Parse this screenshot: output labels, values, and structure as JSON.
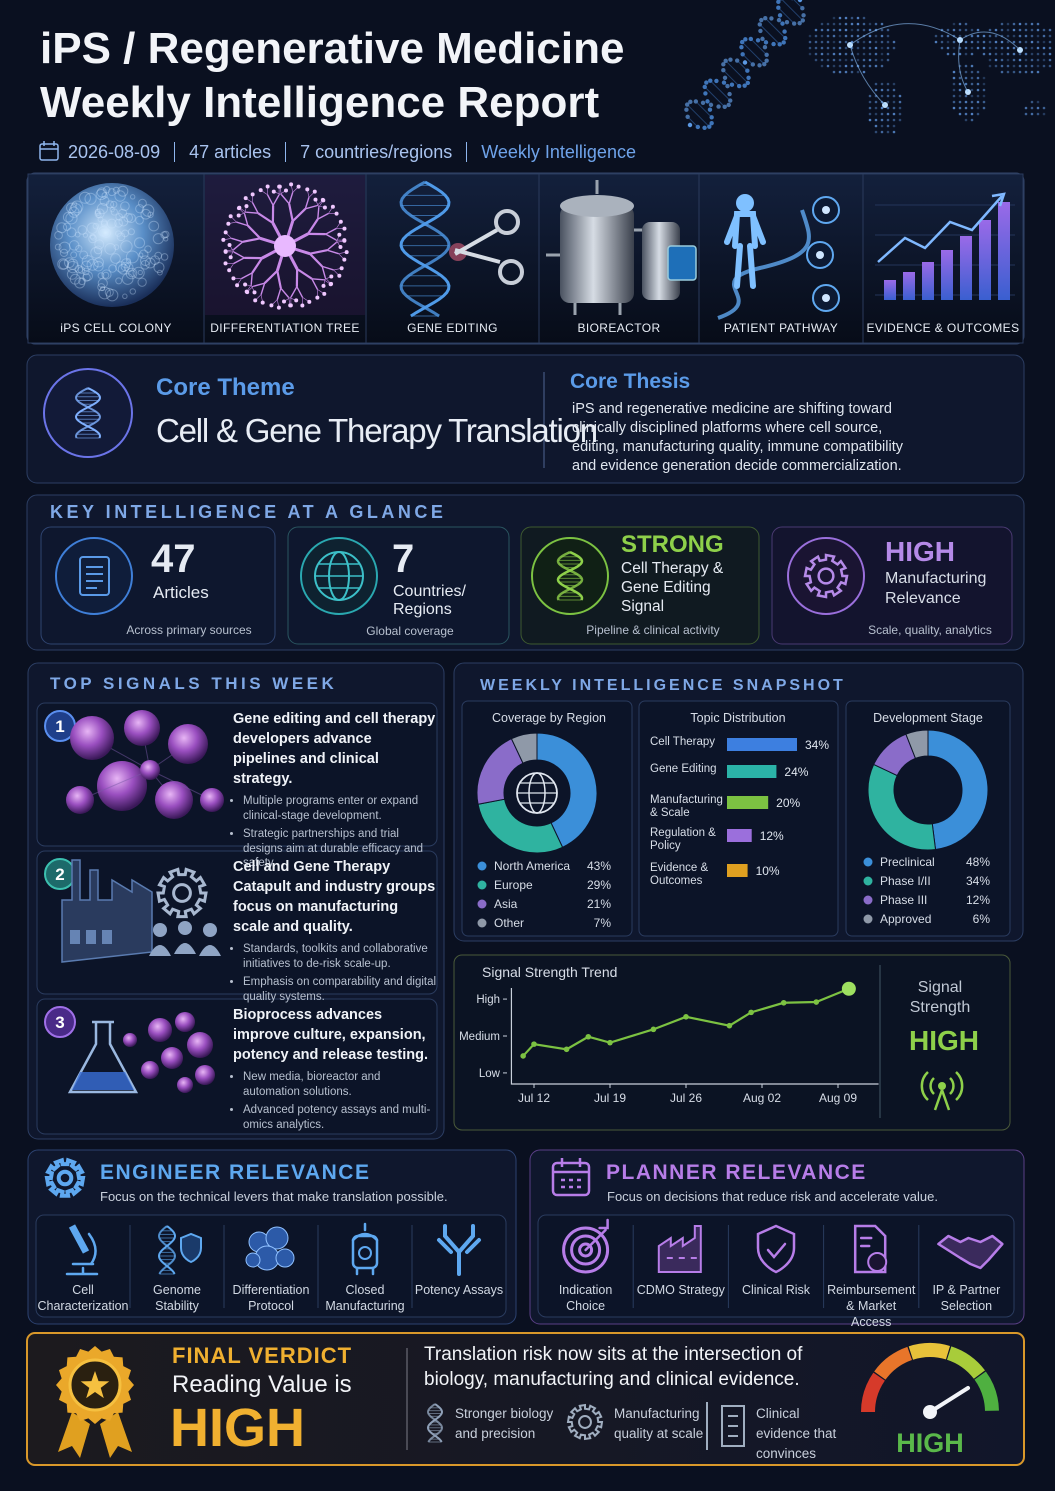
{
  "header": {
    "title": [
      "iPS / Regenerative Medicine",
      "Weekly Intelligence Report"
    ],
    "date": "2026-08-09",
    "articles": "47 articles",
    "countries": "7 countries/regions",
    "edition": "Weekly Intelligence"
  },
  "image_strip": {
    "captions": [
      "iPS CELL COLONY",
      "DIFFERENTIATION TREE",
      "GENE EDITING",
      "BIOREACTOR",
      "PATIENT PATHWAY",
      "EVIDENCE & OUTCOMES"
    ]
  },
  "core": {
    "theme_label": "Core Theme",
    "theme": "Cell & Gene Therapy Translation",
    "thesis_label": "Core Thesis",
    "thesis": "iPS and regenerative medicine are shifting toward clinically disciplined platforms where cell source, editing, manufacturing quality, immune compatibility and evidence generation decide commercialization."
  },
  "key_intelligence": {
    "title": "KEY INTELLIGENCE AT A GLANCE",
    "cards": [
      {
        "value": 47,
        "label": "Articles",
        "note": "Across primary sources"
      },
      {
        "value": 7,
        "label": "Countries/ Regions",
        "note": "Global coverage"
      },
      {
        "value": "STRONG",
        "label": "Cell Therapy & Gene Editing Signal",
        "note": "Pipeline & clinical activity"
      },
      {
        "value": "HIGH",
        "label": "Manufacturing Relevance",
        "note": "Scale, quality, analytics"
      }
    ]
  },
  "top_signals": {
    "title": "TOP SIGNALS THIS WEEK",
    "items": [
      {
        "number": 1,
        "headline": "Gene editing and cell therapy developers advance pipelines and clinical strategy.",
        "bullets": [
          "Multiple programs enter or expand clinical-stage development.",
          "Strategic partnerships and trial designs aim at durable efficacy and safety."
        ]
      },
      {
        "number": 2,
        "headline": "Cell and Gene Therapy Catapult and industry groups focus on manufacturing scale and quality.",
        "bullets": [
          "Standards, toolkits and collaborative initiatives to de-risk scale-up.",
          "Emphasis on comparability and digital quality systems."
        ]
      },
      {
        "number": 3,
        "headline": "Bioprocess advances improve culture, expansion, potency and release testing.",
        "bullets": [
          "New media, bioreactor and automation solutions.",
          "Advanced potency assays and multi-omics analytics."
        ]
      }
    ]
  },
  "snapshot": {
    "title": "WEEKLY INTELLIGENCE SNAPSHOT",
    "region": {
      "title": "Coverage by Region",
      "type": "donut",
      "categories": [
        "North America",
        "Europe",
        "Asia",
        "Other"
      ],
      "values": [
        43,
        29,
        21,
        7
      ],
      "value_labels": [
        "43%",
        "29%",
        "21%",
        "7%"
      ],
      "colors": [
        "#3b8fd9",
        "#2fb3a0",
        "#8a6cc9",
        "#8f99a8"
      ]
    },
    "topics": {
      "title": "Topic Distribution",
      "type": "bar",
      "categories": [
        "Cell Therapy",
        "Gene Editing",
        "Manufacturing & Scale",
        "Regulation & Policy",
        "Evidence & Outcomes"
      ],
      "values": [
        34,
        24,
        20,
        12,
        10
      ],
      "value_labels": [
        "34%",
        "24%",
        "20%",
        "12%",
        "10%"
      ],
      "colors": [
        "#3d7fe0",
        "#2bb3a8",
        "#7cc242",
        "#9b6fdc",
        "#e0a020"
      ]
    },
    "stage": {
      "title": "Development Stage",
      "type": "donut",
      "categories": [
        "Preclinical",
        "Phase I/II",
        "Phase III",
        "Approved"
      ],
      "values": [
        48,
        34,
        12,
        6
      ],
      "value_labels": [
        "48%",
        "34%",
        "12%",
        "6%"
      ],
      "colors": [
        "#3b8fd9",
        "#2fb3a0",
        "#8a6cc9",
        "#8f99a8"
      ]
    }
  },
  "trend": {
    "title": "Signal Strength Trend",
    "type": "line",
    "x": [
      -1,
      0,
      3,
      5,
      7,
      11,
      14,
      18,
      20,
      23,
      26,
      29
    ],
    "values": [
      23,
      39,
      32,
      49,
      41,
      59,
      76,
      64,
      82,
      95,
      96,
      114
    ],
    "xlim": [
      -3,
      31
    ],
    "xticks": [
      {
        "value": 0,
        "label": "Jul 12"
      },
      {
        "value": 7,
        "label": "Jul 19"
      },
      {
        "value": 14,
        "label": "Jul 26"
      },
      {
        "value": 21,
        "label": "Aug 02"
      },
      {
        "value": 28,
        "label": "Aug 09"
      }
    ],
    "ylim": [
      -15,
      115
    ],
    "yticks": [
      {
        "value": 0,
        "label": "Low"
      },
      {
        "value": 50,
        "label": "Medium"
      },
      {
        "value": 100,
        "label": "High"
      }
    ],
    "color": "#7cc242",
    "side_label": "Signal Strength",
    "side_value": "HIGH"
  },
  "engineer": {
    "title": "ENGINEER RELEVANCE",
    "subtitle": "Focus on the technical levers that make translation possible.",
    "items": [
      "Cell Characterization",
      "Genome Stability",
      "Differentiation Protocol",
      "Closed Manufacturing",
      "Potency Assays"
    ]
  },
  "planner": {
    "title": "PLANNER RELEVANCE",
    "subtitle": "Focus on decisions that reduce risk and accelerate value.",
    "items": [
      "Indication Choice",
      "CDMO Strategy",
      "Clinical Risk",
      "Reimbursement & Market Access",
      "IP & Partner Selection"
    ]
  },
  "verdict": {
    "kicker": "FINAL VERDICT",
    "lead": "Reading Value is",
    "value": "HIGH",
    "statement": "Translation risk now sits at the intersection of biology, manufacturing and clinical evidence.",
    "points": [
      "Stronger biology and precision",
      "Manufacturing quality at scale",
      "Clinical evidence that convinces"
    ],
    "gauge_label": "HIGH"
  }
}
